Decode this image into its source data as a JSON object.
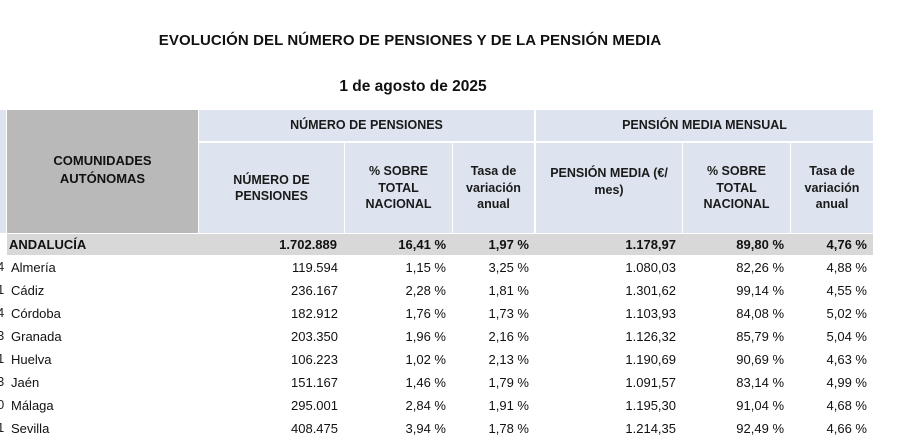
{
  "document": {
    "title": "EVOLUCIÓN DEL NÚMERO DE PENSIONES Y DE LA PENSIÓN MEDIA",
    "date": "1 de agosto de 2025"
  },
  "table": {
    "corner_header": "COMUNIDADES AUTÓNOMAS",
    "group_headers": {
      "pensions": "NÚMERO DE PENSIONES",
      "average": "PENSIÓN MEDIA MENSUAL"
    },
    "column_headers": {
      "num_pensions": "NÚMERO DE PENSIONES",
      "pct_national_count": "% SOBRE TOTAL NACIONAL",
      "annual_rate_count": "Tasa de variación anual",
      "avg_pension": "PENSIÓN MEDIA (€/ mes)",
      "pct_national_avg": "% SOBRE TOTAL NACIONAL",
      "annual_rate_avg": "Tasa de variación anual"
    },
    "total_row": {
      "name": "ANDALUCÍA",
      "num_pensions": "1.702.889",
      "pct_national_count": "16,41 %",
      "annual_rate_count": "1,97 %",
      "avg_pension": "1.178,97",
      "pct_national_avg": "89,80 %",
      "annual_rate_avg": "4,76 %"
    },
    "rows": [
      {
        "edge": "4",
        "name": "Almería",
        "num_pensions": "119.594",
        "pct_national_count": "1,15 %",
        "annual_rate_count": "3,25 %",
        "avg_pension": "1.080,03",
        "pct_national_avg": "82,26 %",
        "annual_rate_avg": "4,88 %"
      },
      {
        "edge": "1",
        "name": "Cádiz",
        "num_pensions": "236.167",
        "pct_national_count": "2,28 %",
        "annual_rate_count": "1,81 %",
        "avg_pension": "1.301,62",
        "pct_national_avg": "99,14 %",
        "annual_rate_avg": "4,55 %"
      },
      {
        "edge": "4",
        "name": "Córdoba",
        "num_pensions": "182.912",
        "pct_national_count": "1,76 %",
        "annual_rate_count": "1,73 %",
        "avg_pension": "1.103,93",
        "pct_national_avg": "84,08 %",
        "annual_rate_avg": "5,02 %"
      },
      {
        "edge": "3",
        "name": "Granada",
        "num_pensions": "203.350",
        "pct_national_count": "1,96 %",
        "annual_rate_count": "2,16 %",
        "avg_pension": "1.126,32",
        "pct_national_avg": "85,79 %",
        "annual_rate_avg": "5,04 %"
      },
      {
        "edge": "1",
        "name": "Huelva",
        "num_pensions": "106.223",
        "pct_national_count": "1,02 %",
        "annual_rate_count": "2,13 %",
        "avg_pension": "1.190,69",
        "pct_national_avg": "90,69 %",
        "annual_rate_avg": "4,63 %"
      },
      {
        "edge": "3",
        "name": "Jaén",
        "num_pensions": "151.167",
        "pct_national_count": "1,46 %",
        "annual_rate_count": "1,79 %",
        "avg_pension": "1.091,57",
        "pct_national_avg": "83,14 %",
        "annual_rate_avg": "4,99 %"
      },
      {
        "edge": "0",
        "name": "Málaga",
        "num_pensions": "295.001",
        "pct_national_count": "2,84 %",
        "annual_rate_count": "1,91 %",
        "avg_pension": "1.195,30",
        "pct_national_avg": "91,04 %",
        "annual_rate_avg": "4,68 %"
      },
      {
        "edge": "1",
        "name": "Sevilla",
        "num_pensions": "408.475",
        "pct_national_count": "3,94 %",
        "annual_rate_count": "1,78 %",
        "avg_pension": "1.214,35",
        "pct_national_avg": "92,49 %",
        "annual_rate_avg": "4,66 %"
      }
    ]
  },
  "colors": {
    "header_blue": "#dde4ef",
    "corner_gray": "#b9b9b9",
    "total_row_gray": "#d8d8d8"
  }
}
